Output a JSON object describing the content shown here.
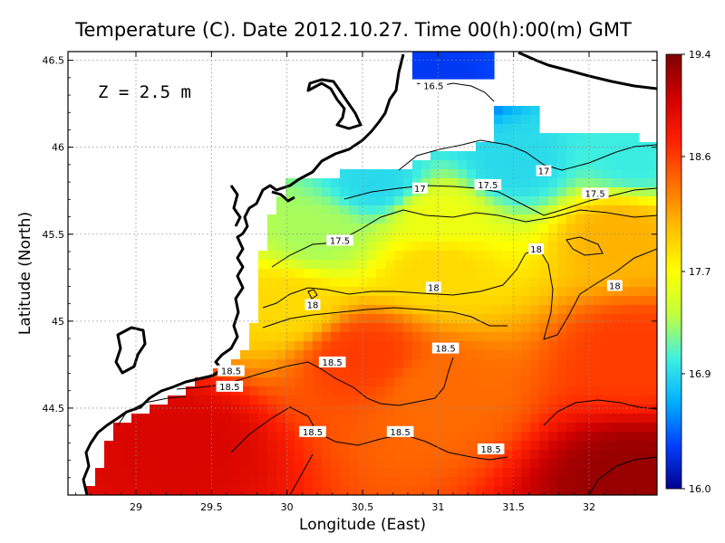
{
  "chart_data": {
    "type": "heatmap",
    "title": "Temperature (C). Date 2012.10.27. Time 00(h):00(m) GMT",
    "annotation": "Z = 2.5 m",
    "xlabel": "Longitude (East)",
    "ylabel": "Latitude (North)",
    "xlim": [
      28.55,
      32.45
    ],
    "ylim": [
      44.0,
      46.55
    ],
    "x_ticks": [
      "29",
      "29.5",
      "30",
      "30.5",
      "31",
      "31.5",
      "32"
    ],
    "x_tick_values": [
      29,
      29.5,
      30,
      30.5,
      31,
      31.5,
      32
    ],
    "y_ticks": [
      "44.5",
      "45",
      "45.5",
      "46",
      "46.5"
    ],
    "y_tick_values": [
      44.5,
      45,
      45.5,
      46,
      46.5
    ],
    "grid": true,
    "colorbar": {
      "ticks": [
        "16.0",
        "16.9",
        "17.7",
        "18.6",
        "19.4"
      ],
      "values": [
        16.0,
        16.9,
        17.7,
        18.6,
        19.4
      ],
      "colors": [
        "#00008f",
        "#0040ff",
        "#00b0ff",
        "#40f0e0",
        "#c0ff40",
        "#ffff00",
        "#ffc000",
        "#ff7000",
        "#ff2000",
        "#d00000",
        "#800000"
      ]
    },
    "contour_labels": [
      {
        "text": "16.5",
        "lon": 30.97,
        "lat": 46.35
      },
      {
        "text": "17",
        "lon": 31.7,
        "lat": 45.86
      },
      {
        "text": "17",
        "lon": 30.88,
        "lat": 45.76
      },
      {
        "text": "17.5",
        "lon": 31.33,
        "lat": 45.78
      },
      {
        "text": "17.5",
        "lon": 32.04,
        "lat": 45.73
      },
      {
        "text": "17.5",
        "lon": 30.35,
        "lat": 45.46
      },
      {
        "text": "18",
        "lon": 31.65,
        "lat": 45.41
      },
      {
        "text": "18",
        "lon": 30.97,
        "lat": 45.19
      },
      {
        "text": "18",
        "lon": 32.17,
        "lat": 45.2
      },
      {
        "text": "18",
        "lon": 30.17,
        "lat": 45.09
      },
      {
        "text": "18.5",
        "lon": 31.05,
        "lat": 44.84
      },
      {
        "text": "18.5",
        "lon": 30.3,
        "lat": 44.76
      },
      {
        "text": "18.5",
        "lon": 29.63,
        "lat": 44.71
      },
      {
        "text": "18.5",
        "lon": 29.62,
        "lat": 44.62
      },
      {
        "text": "18.5",
        "lon": 30.17,
        "lat": 44.36
      },
      {
        "text": "18.5",
        "lon": 30.75,
        "lat": 44.36
      },
      {
        "text": "18.5",
        "lon": 31.35,
        "lat": 44.26
      }
    ],
    "temperature_anchors": [
      {
        "lon": 31.0,
        "lat": 46.35,
        "t": 16.3
      },
      {
        "lon": 30.6,
        "lat": 45.8,
        "t": 16.9
      },
      {
        "lon": 31.5,
        "lat": 45.9,
        "t": 16.9
      },
      {
        "lon": 32.3,
        "lat": 45.95,
        "t": 17.0
      },
      {
        "lon": 31.0,
        "lat": 45.6,
        "t": 17.6
      },
      {
        "lon": 30.2,
        "lat": 45.5,
        "t": 17.3
      },
      {
        "lon": 31.0,
        "lat": 45.3,
        "t": 17.9
      },
      {
        "lon": 32.2,
        "lat": 45.5,
        "t": 18.1
      },
      {
        "lon": 30.0,
        "lat": 45.1,
        "t": 17.9
      },
      {
        "lon": 30.5,
        "lat": 44.8,
        "t": 18.6
      },
      {
        "lon": 31.0,
        "lat": 44.6,
        "t": 18.4
      },
      {
        "lon": 32.3,
        "lat": 44.8,
        "t": 18.6
      },
      {
        "lon": 29.3,
        "lat": 44.3,
        "t": 19.0
      },
      {
        "lon": 32.3,
        "lat": 44.1,
        "t": 19.3
      }
    ]
  }
}
